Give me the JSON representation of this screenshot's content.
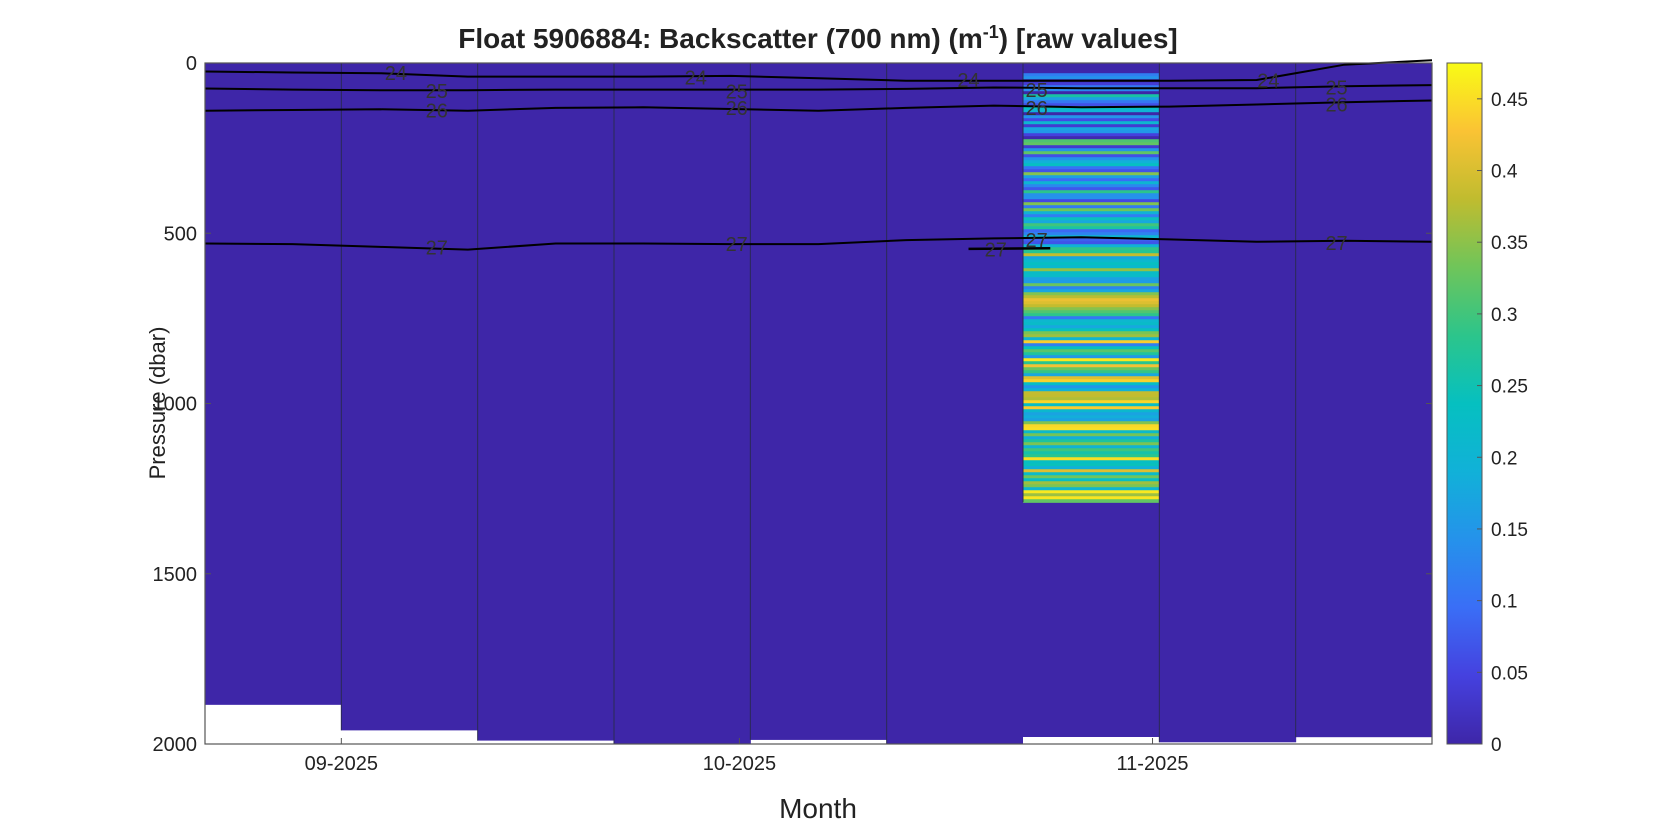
{
  "chart_data": {
    "type": "heatmap",
    "title": "Float  5906884:  Backscatter  (700  nm)  (m",
    "title_superscript": "-1",
    "title_suffix": ")  [raw  values]",
    "xlabel": "Month",
    "ylabel": "Pressure (dbar)",
    "x_ticks": [
      "09-2025",
      "10-2025",
      "11-2025"
    ],
    "y_ticks": [
      0,
      500,
      1000,
      1500,
      2000
    ],
    "ylim": [
      0,
      2000
    ],
    "y_reversed": true,
    "colorbar": {
      "ticks": [
        0,
        0.05,
        0.1,
        0.15,
        0.2,
        0.25,
        0.3,
        0.35,
        0.4,
        0.45
      ],
      "range": [
        0,
        0.475
      ],
      "colormap": "parula"
    },
    "profiles": [
      {
        "bottom_pressure": 1885,
        "value": 0.0
      },
      {
        "bottom_pressure": 1960,
        "value": 0.0
      },
      {
        "bottom_pressure": 1990,
        "value": 0.0
      },
      {
        "bottom_pressure": 2000,
        "value": 0.0
      },
      {
        "bottom_pressure": 1988,
        "value": 0.0
      },
      {
        "bottom_pressure": 2000,
        "value": 0.0
      },
      {
        "bottom_pressure": 1290,
        "value": "noisy",
        "deep_pressure": 1985
      },
      {
        "bottom_pressure": 1995,
        "value": 0.0
      },
      {
        "bottom_pressure": 1980,
        "value": 0.0
      }
    ],
    "contours": [
      {
        "label": "24",
        "pressure": [
          25,
          28,
          30,
          40,
          40,
          40,
          38,
          45,
          52,
          52,
          52,
          52,
          50,
          5,
          -20
        ]
      },
      {
        "label": "25",
        "pressure": [
          75,
          78,
          80,
          80,
          78,
          78,
          78,
          78,
          76,
          72,
          74,
          74,
          74,
          68,
          65
        ]
      },
      {
        "label": "26",
        "pressure": [
          140,
          138,
          136,
          140,
          132,
          130,
          135,
          140,
          132,
          125,
          130,
          128,
          122,
          115,
          110
        ]
      },
      {
        "label": "27",
        "pressure": [
          530,
          532,
          540,
          548,
          530,
          530,
          532,
          532,
          520,
          515,
          512,
          518,
          525,
          522,
          525
        ]
      }
    ],
    "contour_labels": [
      {
        "label": "24",
        "profile_pos": 1.4,
        "pressure": 30
      },
      {
        "label": "24",
        "profile_pos": 3.6,
        "pressure": 42
      },
      {
        "label": "24",
        "profile_pos": 5.6,
        "pressure": 50
      },
      {
        "label": "24",
        "profile_pos": 7.8,
        "pressure": 52
      },
      {
        "label": "25",
        "profile_pos": 1.7,
        "pressure": 82
      },
      {
        "label": "25",
        "profile_pos": 3.9,
        "pressure": 84
      },
      {
        "label": "25",
        "profile_pos": 6.1,
        "pressure": 80
      },
      {
        "label": "25",
        "profile_pos": 8.3,
        "pressure": 72
      },
      {
        "label": "26",
        "profile_pos": 1.7,
        "pressure": 140
      },
      {
        "label": "26",
        "profile_pos": 3.9,
        "pressure": 132
      },
      {
        "label": "26",
        "profile_pos": 6.1,
        "pressure": 132
      },
      {
        "label": "26",
        "profile_pos": 8.3,
        "pressure": 122
      },
      {
        "label": "27",
        "profile_pos": 1.7,
        "pressure": 542
      },
      {
        "label": "27",
        "profile_pos": 3.9,
        "pressure": 532
      },
      {
        "label": "27",
        "profile_pos": 5.8,
        "pressure": 548
      },
      {
        "label": "27",
        "profile_pos": 6.1,
        "pressure": 520
      },
      {
        "label": "27",
        "profile_pos": 8.3,
        "pressure": 528
      }
    ]
  }
}
